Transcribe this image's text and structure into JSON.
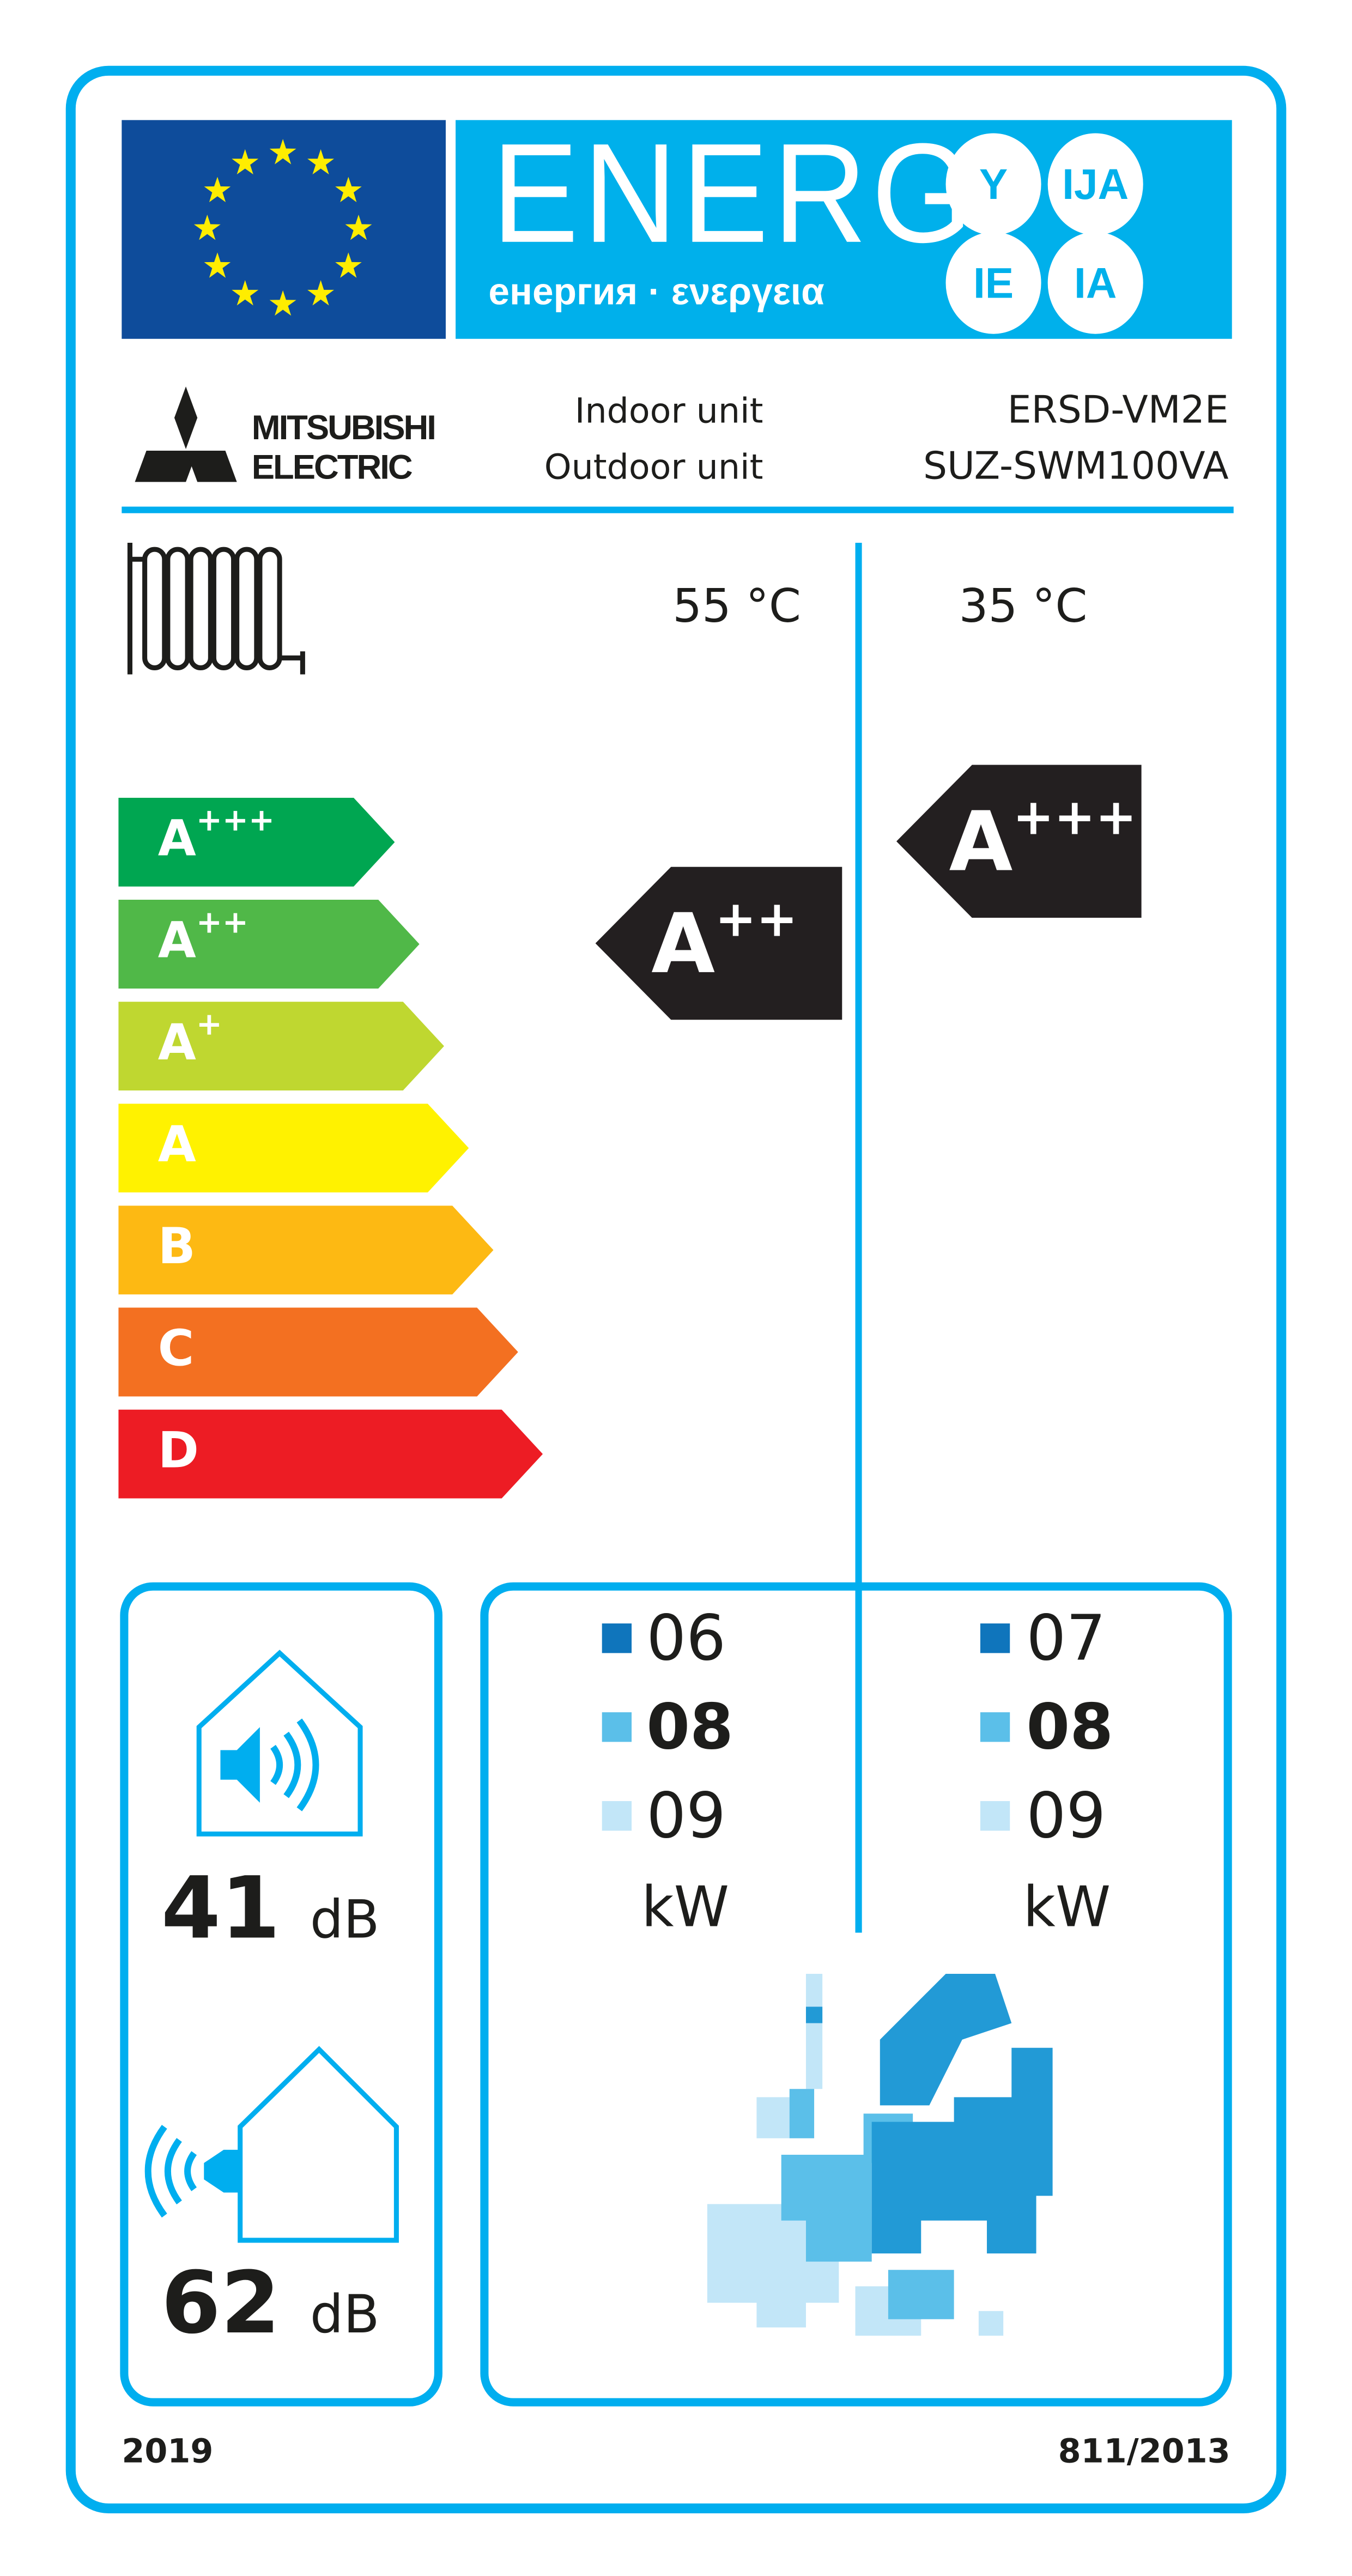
{
  "header": {
    "energy_title": "ENERG",
    "energy_subtitle": "енергия · ενεργεια",
    "suffixes": [
      "Y",
      "IJA",
      "IE",
      "IA"
    ],
    "eu_flag_color": "#0e4c9b",
    "energy_color": "#00b0eb"
  },
  "brand": {
    "logo_line1": "MITSUBISHI",
    "logo_line2": "ELECTRIC",
    "indoor_label": "Indoor unit",
    "outdoor_label": "Outdoor unit",
    "indoor_model": "ERSD-VM2E",
    "outdoor_model": "SUZ-SWM100VA"
  },
  "temperatures": {
    "left": "55 °C",
    "right": "35 °C"
  },
  "scale": [
    {
      "letter": "A",
      "plus": "+++",
      "color": "#00a651"
    },
    {
      "letter": "A",
      "plus": "++",
      "color": "#50b848"
    },
    {
      "letter": "A",
      "plus": "+",
      "color": "#bfd730"
    },
    {
      "letter": "A",
      "plus": "",
      "color": "#fff200"
    },
    {
      "letter": "B",
      "plus": "",
      "color": "#fdb913"
    },
    {
      "letter": "C",
      "plus": "",
      "color": "#f37021"
    },
    {
      "letter": "D",
      "plus": "",
      "color": "#ed1c24"
    }
  ],
  "ratings": {
    "t55": {
      "letter": "A",
      "plus": "++"
    },
    "t35": {
      "letter": "A",
      "plus": "+++"
    }
  },
  "noise": {
    "indoor_value": "41",
    "outdoor_value": "62",
    "unit": "dB"
  },
  "output": {
    "left": [
      {
        "value": "06",
        "zone": "cold",
        "color": "#0f75bc"
      },
      {
        "value": "08",
        "zone": "average",
        "color": "#5bbfe9"
      },
      {
        "value": "09",
        "zone": "warm",
        "color": "#c2e6f8"
      }
    ],
    "right": [
      {
        "value": "07",
        "zone": "cold",
        "color": "#0f75bc"
      },
      {
        "value": "08",
        "zone": "average",
        "color": "#5bbfe9"
      },
      {
        "value": "09",
        "zone": "warm",
        "color": "#c2e6f8"
      }
    ],
    "unit": "kW"
  },
  "footer": {
    "year": "2019",
    "regulation": "811/2013"
  }
}
